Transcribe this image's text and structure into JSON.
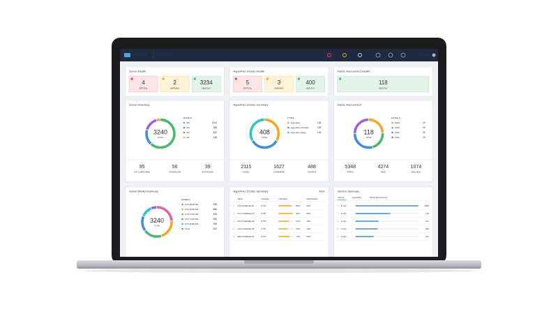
{
  "header": {
    "app": "Intersight",
    "page": "Dashboard",
    "alerts": [
      "4",
      "2",
      "4"
    ],
    "user": "Username"
  },
  "health": [
    {
      "title": "Server Health",
      "items": [
        {
          "value": "4",
          "label": "CRITICAL"
        },
        {
          "value": "2",
          "label": "WARNING"
        },
        {
          "value": "3234",
          "label": "HEALTHY"
        }
      ]
    },
    {
      "title": "HyperFlex Cluster Health",
      "items": [
        {
          "value": "5",
          "label": "CRITICAL"
        },
        {
          "value": "3",
          "label": "WARNING"
        },
        {
          "value": "400",
          "label": "HEALTHY"
        }
      ]
    },
    {
      "title": "Fabric Interconnect Health",
      "items": [
        {
          "value": "118",
          "label": "HEALTHY"
        }
      ]
    }
  ],
  "inventory": [
    {
      "title": "Server Inventory",
      "total": "3240",
      "total_label": "TOTAL",
      "legend_title": "MODELS",
      "legend": [
        {
          "label": "M5",
          "value": 2014,
          "color": "#49b86e"
        },
        {
          "label": "M4",
          "value": 568,
          "color": "#3e8ede"
        },
        {
          "label": "M3",
          "value": 522,
          "color": "#9a62d6"
        },
        {
          "label": "M2",
          "value": 136,
          "color": "#f5a623"
        }
      ],
      "footer": [
        {
          "value": "95",
          "label": "NOT CONFIGURED"
        },
        {
          "value": "56",
          "label": "STANDALONE"
        },
        {
          "value": "39",
          "label": "FI-ATTACHED"
        }
      ]
    },
    {
      "title": "HyperFlex Cluster Summary",
      "total": "408",
      "total_label": "TOTAL",
      "legend_title": "TYPES",
      "legend": [
        {
          "label": "HyperFlex",
          "value": 138,
          "color": "#f5a623"
        },
        {
          "label": "HyperFlex All Flash",
          "value": 135,
          "color": "#3e8ede"
        },
        {
          "label": "HyperFlex Edge",
          "value": 135,
          "color": "#2ec4c4"
        }
      ],
      "footer": [
        {
          "value": "2115",
          "label": "NODES"
        },
        {
          "value": "1627",
          "label": "CONVERGED"
        },
        {
          "value": "488",
          "label": "COMPUTE"
        }
      ]
    },
    {
      "title": "Fabric Interconnect",
      "total": "118",
      "total_label": "TOTAL",
      "legend_title": "MODELS",
      "legend": [
        {
          "label": "6248",
          "value": 29,
          "color": "#f5a623"
        },
        {
          "label": "6296",
          "value": 25,
          "color": "#49b86e"
        },
        {
          "label": "6332",
          "value": 35,
          "color": "#3e8ede"
        },
        {
          "label": "6454",
          "value": 29,
          "color": "#9a62d6"
        }
      ],
      "footer": [
        {
          "value": "5348",
          "label": "PORTS"
        },
        {
          "value": "4274",
          "label": "USED"
        },
        {
          "value": "1074",
          "label": "AVAILABLE"
        }
      ]
    }
  ],
  "server_models": {
    "title": "Server Model Summary",
    "total": "3240",
    "total_label": "TOTAL",
    "legend_title": "MODELS",
    "legend": [
      {
        "label": "UCS B200 M5",
        "value": 786,
        "color": "#e063a0"
      },
      {
        "label": "UCS B200 M4",
        "value": 686,
        "color": "#f5a623"
      },
      {
        "label": "UCS C240 M5",
        "value": 636,
        "color": "#49b86e"
      },
      {
        "label": "UCS C220 M5",
        "value": 536,
        "color": "#3e8ede"
      },
      {
        "label": "UCS B480 M5",
        "value": 396,
        "color": "#2ec4c4"
      },
      {
        "label": "Other",
        "value": 200,
        "color": "#9a62d6"
      }
    ]
  },
  "cluster_table": {
    "title": "HyperFlex Cluster Summary",
    "link": "More",
    "columns": [
      "Name",
      "Capacity",
      "Utilization",
      "Optimization"
    ],
    "rows": [
      [
        "SJC-HXEDGE-06",
        "8 TB",
        "85%",
        "50%"
      ],
      [
        "NYC-HXEDGE-07",
        "6 TB",
        "91%",
        "55%"
      ],
      [
        "DAX-HXEDGE-06",
        "8 TB",
        "67%",
        "18%"
      ],
      [
        "LON-HXEDGE-05",
        "4 TB",
        "60%",
        "44%"
      ],
      [
        "DEN-HXEDGE-01",
        "8 TB",
        "72%",
        "60%"
      ]
    ]
  },
  "versions": {
    "title": "Version Summary",
    "tabs": [
      "Server",
      "HyperFlex",
      "Fabric Interconnect"
    ],
    "rows": [
      {
        "version": "3.1(3)",
        "count": 1286
      },
      {
        "version": "3.1(2)",
        "count": 712
      },
      {
        "version": "3.1(1)",
        "count": 471
      },
      {
        "version": "3.0(4)",
        "count": 452
      },
      {
        "version": "3.0(3)",
        "count": 371
      }
    ]
  }
}
